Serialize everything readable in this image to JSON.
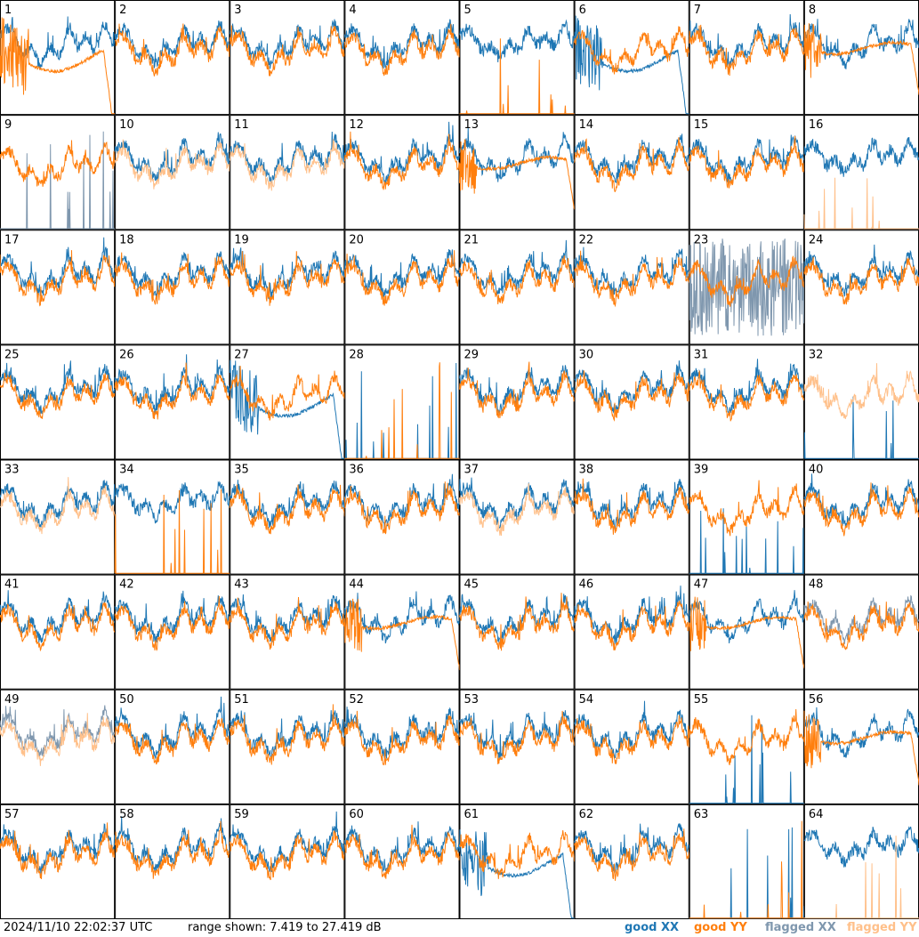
{
  "footer": {
    "timestamp": "2024/11/10 22:02:37 UTC",
    "range_text": "range shown: 7.419 to 27.419 dB"
  },
  "legend": {
    "good_xx": "good XX",
    "good_yy": "good YY",
    "flagged_xx": "flagged XX",
    "flagged_yy": "flagged YY"
  },
  "colors": {
    "good_xx": "#1f77b4",
    "good_yy": "#ff7f0e",
    "flagged_xx": "#7f97ae",
    "flagged_yy": "#ffc08a"
  },
  "chart_data": {
    "type": "line",
    "ylim": [
      7.419,
      27.419
    ],
    "grid": {
      "rows": 8,
      "cols": 8
    },
    "panels": [
      {
        "label": "1",
        "xx": "good",
        "yy": "good",
        "xx_style": "normal",
        "yy_style": "droop"
      },
      {
        "label": "2",
        "xx": "good",
        "yy": "good",
        "xx_style": "normal",
        "yy_style": "normal"
      },
      {
        "label": "3",
        "xx": "good",
        "yy": "good",
        "xx_style": "normal",
        "yy_style": "normal"
      },
      {
        "label": "4",
        "xx": "good",
        "yy": "good",
        "xx_style": "normal",
        "yy_style": "normal"
      },
      {
        "label": "5",
        "xx": "good",
        "yy": "good",
        "xx_style": "high",
        "yy_style": "dead"
      },
      {
        "label": "6",
        "xx": "good",
        "yy": "good",
        "xx_style": "droop",
        "yy_style": "normal"
      },
      {
        "label": "7",
        "xx": "good",
        "yy": "good",
        "xx_style": "normal",
        "yy_style": "normal"
      },
      {
        "label": "8",
        "xx": "good",
        "yy": "good",
        "xx_style": "normal",
        "yy_style": "smooth"
      },
      {
        "label": "9",
        "xx": "flagged",
        "yy": "good",
        "xx_style": "dead",
        "yy_style": "normal"
      },
      {
        "label": "10",
        "xx": "good",
        "yy": "flagged",
        "xx_style": "normal",
        "yy_style": "normal"
      },
      {
        "label": "11",
        "xx": "good",
        "yy": "flagged",
        "xx_style": "normal",
        "yy_style": "normal"
      },
      {
        "label": "12",
        "xx": "good",
        "yy": "good",
        "xx_style": "normal",
        "yy_style": "normal"
      },
      {
        "label": "13",
        "xx": "good",
        "yy": "good",
        "xx_style": "normal",
        "yy_style": "smooth"
      },
      {
        "label": "14",
        "xx": "good",
        "yy": "good",
        "xx_style": "normal",
        "yy_style": "normal"
      },
      {
        "label": "15",
        "xx": "good",
        "yy": "good",
        "xx_style": "normal",
        "yy_style": "normal"
      },
      {
        "label": "16",
        "xx": "good",
        "yy": "flagged",
        "xx_style": "high",
        "yy_style": "dead"
      },
      {
        "label": "17",
        "xx": "good",
        "yy": "good",
        "xx_style": "normal",
        "yy_style": "normal"
      },
      {
        "label": "18",
        "xx": "good",
        "yy": "good",
        "xx_style": "normal",
        "yy_style": "normal"
      },
      {
        "label": "19",
        "xx": "good",
        "yy": "good",
        "xx_style": "normal",
        "yy_style": "normal"
      },
      {
        "label": "20",
        "xx": "good",
        "yy": "good",
        "xx_style": "normal",
        "yy_style": "normal"
      },
      {
        "label": "21",
        "xx": "good",
        "yy": "good",
        "xx_style": "normal",
        "yy_style": "normal"
      },
      {
        "label": "22",
        "xx": "good",
        "yy": "good",
        "xx_style": "normal",
        "yy_style": "normal"
      },
      {
        "label": "23",
        "xx": "flagged",
        "yy": "good",
        "xx_style": "noisy",
        "yy_style": "normal"
      },
      {
        "label": "24",
        "xx": "good",
        "yy": "good",
        "xx_style": "normal",
        "yy_style": "normal"
      },
      {
        "label": "25",
        "xx": "good",
        "yy": "good",
        "xx_style": "normal",
        "yy_style": "normal"
      },
      {
        "label": "26",
        "xx": "good",
        "yy": "good",
        "xx_style": "normal",
        "yy_style": "normal"
      },
      {
        "label": "27",
        "xx": "good",
        "yy": "good",
        "xx_style": "droop",
        "yy_style": "normal"
      },
      {
        "label": "28",
        "xx": "good",
        "yy": "good",
        "xx_style": "dead",
        "yy_style": "dead"
      },
      {
        "label": "29",
        "xx": "good",
        "yy": "good",
        "xx_style": "normal",
        "yy_style": "normal"
      },
      {
        "label": "30",
        "xx": "good",
        "yy": "good",
        "xx_style": "normal",
        "yy_style": "normal"
      },
      {
        "label": "31",
        "xx": "good",
        "yy": "good",
        "xx_style": "normal",
        "yy_style": "normal"
      },
      {
        "label": "32",
        "xx": "good",
        "yy": "flagged",
        "xx_style": "dead",
        "yy_style": "normal"
      },
      {
        "label": "33",
        "xx": "good",
        "yy": "flagged",
        "xx_style": "normal",
        "yy_style": "normal"
      },
      {
        "label": "34",
        "xx": "good",
        "yy": "good",
        "xx_style": "high",
        "yy_style": "dead"
      },
      {
        "label": "35",
        "xx": "good",
        "yy": "good",
        "xx_style": "normal",
        "yy_style": "normal"
      },
      {
        "label": "36",
        "xx": "good",
        "yy": "good",
        "xx_style": "normal",
        "yy_style": "normal"
      },
      {
        "label": "37",
        "xx": "good",
        "yy": "flagged",
        "xx_style": "normal",
        "yy_style": "normal"
      },
      {
        "label": "38",
        "xx": "good",
        "yy": "good",
        "xx_style": "normal",
        "yy_style": "normal"
      },
      {
        "label": "39",
        "xx": "good",
        "yy": "good",
        "xx_style": "dead",
        "yy_style": "normal"
      },
      {
        "label": "40",
        "xx": "good",
        "yy": "good",
        "xx_style": "normal",
        "yy_style": "normal"
      },
      {
        "label": "41",
        "xx": "good",
        "yy": "good",
        "xx_style": "normal",
        "yy_style": "normal"
      },
      {
        "label": "42",
        "xx": "good",
        "yy": "good",
        "xx_style": "normal",
        "yy_style": "normal"
      },
      {
        "label": "43",
        "xx": "good",
        "yy": "good",
        "xx_style": "normal",
        "yy_style": "normal"
      },
      {
        "label": "44",
        "xx": "good",
        "yy": "good",
        "xx_style": "normal",
        "yy_style": "smooth"
      },
      {
        "label": "45",
        "xx": "good",
        "yy": "good",
        "xx_style": "normal",
        "yy_style": "normal"
      },
      {
        "label": "46",
        "xx": "good",
        "yy": "good",
        "xx_style": "normal",
        "yy_style": "normal"
      },
      {
        "label": "47",
        "xx": "good",
        "yy": "good",
        "xx_style": "normal",
        "yy_style": "smooth"
      },
      {
        "label": "48",
        "xx": "flagged",
        "yy": "good",
        "xx_style": "normal",
        "yy_style": "normal"
      },
      {
        "label": "49",
        "xx": "flagged",
        "yy": "flagged",
        "xx_style": "normal",
        "yy_style": "normal"
      },
      {
        "label": "50",
        "xx": "good",
        "yy": "good",
        "xx_style": "normal",
        "yy_style": "normal"
      },
      {
        "label": "51",
        "xx": "good",
        "yy": "good",
        "xx_style": "normal",
        "yy_style": "normal"
      },
      {
        "label": "52",
        "xx": "good",
        "yy": "good",
        "xx_style": "normal",
        "yy_style": "normal"
      },
      {
        "label": "53",
        "xx": "good",
        "yy": "good",
        "xx_style": "normal",
        "yy_style": "normal"
      },
      {
        "label": "54",
        "xx": "good",
        "yy": "good",
        "xx_style": "normal",
        "yy_style": "normal"
      },
      {
        "label": "55",
        "xx": "good",
        "yy": "good",
        "xx_style": "dead",
        "yy_style": "normal"
      },
      {
        "label": "56",
        "xx": "good",
        "yy": "good",
        "xx_style": "normal",
        "yy_style": "smooth"
      },
      {
        "label": "57",
        "xx": "good",
        "yy": "good",
        "xx_style": "normal",
        "yy_style": "normal"
      },
      {
        "label": "58",
        "xx": "good",
        "yy": "good",
        "xx_style": "normal",
        "yy_style": "normal"
      },
      {
        "label": "59",
        "xx": "good",
        "yy": "good",
        "xx_style": "normal",
        "yy_style": "normal"
      },
      {
        "label": "60",
        "xx": "good",
        "yy": "good",
        "xx_style": "normal",
        "yy_style": "normal"
      },
      {
        "label": "61",
        "xx": "good",
        "yy": "good",
        "xx_style": "droop",
        "yy_style": "normal"
      },
      {
        "label": "62",
        "xx": "good",
        "yy": "good",
        "xx_style": "normal",
        "yy_style": "normal"
      },
      {
        "label": "63",
        "xx": "good",
        "yy": "good",
        "xx_style": "dead",
        "yy_style": "dead"
      },
      {
        "label": "64",
        "xx": "good",
        "yy": "flagged",
        "xx_style": "high",
        "yy_style": "dead"
      }
    ]
  }
}
